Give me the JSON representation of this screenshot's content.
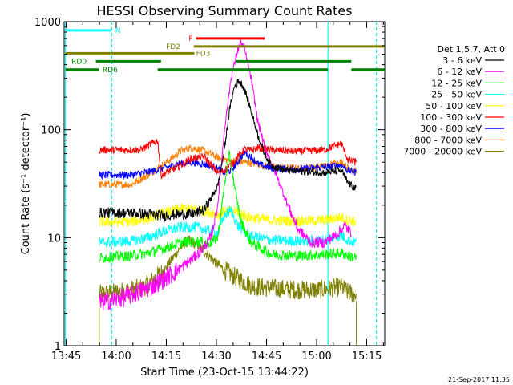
{
  "chart_data": {
    "type": "line",
    "title": "HESSI Observing Summary Count Rates",
    "xlabel": "Start Time (23-Oct-15 13:44:22)",
    "ylabel": "Count Rate (s⁻¹ detector⁻¹)",
    "x_unit": "minutes after 13:44:22",
    "xlim": [
      0,
      96
    ],
    "ylim": [
      1,
      1000
    ],
    "yscale": "log",
    "x_ticks": [
      {
        "v": 0.6,
        "label": "13:45"
      },
      {
        "v": 15.6,
        "label": "14:00"
      },
      {
        "v": 30.6,
        "label": "14:15"
      },
      {
        "v": 45.6,
        "label": "14:30"
      },
      {
        "v": 60.6,
        "label": "14:45"
      },
      {
        "v": 75.6,
        "label": "15:00"
      },
      {
        "v": 90.6,
        "label": "15:15"
      }
    ],
    "y_ticks": [
      {
        "v": 1,
        "label": "1"
      },
      {
        "v": 10,
        "label": "10"
      },
      {
        "v": 100,
        "label": "100"
      },
      {
        "v": 1000,
        "label": "1000"
      }
    ],
    "legend_header": "Det 1,5,7, Att 0",
    "legend_position": "right",
    "timestamp": "21-Sep-2017 11:35",
    "series": [
      {
        "name": "3 - 6 keV",
        "color": "#000000",
        "data": [
          [
            10.5,
            17
          ],
          [
            20,
            17
          ],
          [
            30,
            16
          ],
          [
            34,
            16.5
          ],
          [
            38,
            16.5
          ],
          [
            42,
            18
          ],
          [
            46,
            30
          ],
          [
            48,
            65
          ],
          [
            49.5,
            150
          ],
          [
            51,
            250
          ],
          [
            52.5,
            285
          ],
          [
            54,
            240
          ],
          [
            56,
            150
          ],
          [
            58,
            90
          ],
          [
            60,
            60
          ],
          [
            62,
            47
          ],
          [
            66,
            42
          ],
          [
            72,
            41
          ],
          [
            78,
            40
          ],
          [
            83,
            42
          ],
          [
            85,
            32
          ],
          [
            87.5,
            28
          ]
        ]
      },
      {
        "name": "6 - 12 keV",
        "color": "#ff00ff",
        "data": [
          [
            10.5,
            2.5
          ],
          [
            18,
            2.8
          ],
          [
            26,
            3.5
          ],
          [
            34,
            5
          ],
          [
            40,
            7
          ],
          [
            44,
            10
          ],
          [
            46,
            20
          ],
          [
            48,
            100
          ],
          [
            50,
            300
          ],
          [
            52,
            550
          ],
          [
            53,
            650
          ],
          [
            54,
            560
          ],
          [
            56,
            300
          ],
          [
            58,
            120
          ],
          [
            60,
            70
          ],
          [
            62,
            50
          ],
          [
            64,
            35
          ],
          [
            67,
            20
          ],
          [
            70,
            12
          ],
          [
            74,
            9
          ],
          [
            78,
            9
          ],
          [
            82,
            11
          ],
          [
            84,
            13
          ],
          [
            86,
            11
          ]
        ]
      },
      {
        "name": "12 - 25 keV",
        "color": "#00ff00",
        "data": [
          [
            10.5,
            6.5
          ],
          [
            20,
            6.8
          ],
          [
            25,
            7.2
          ],
          [
            30,
            8
          ],
          [
            35,
            9
          ],
          [
            40,
            9.2
          ],
          [
            44,
            9
          ],
          [
            46,
            10
          ],
          [
            48,
            30
          ],
          [
            49.5,
            60
          ],
          [
            51,
            30
          ],
          [
            53,
            14
          ],
          [
            56,
            9
          ],
          [
            62,
            7
          ],
          [
            70,
            6.8
          ],
          [
            78,
            7
          ],
          [
            83,
            7.2
          ],
          [
            85,
            6.8
          ],
          [
            87.5,
            6.5
          ]
        ]
      },
      {
        "name": "25 - 50 keV",
        "color": "#00ffff",
        "data": [
          [
            10.5,
            9
          ],
          [
            20,
            9.3
          ],
          [
            25,
            10
          ],
          [
            30,
            11.5
          ],
          [
            35,
            12.5
          ],
          [
            40,
            12.5
          ],
          [
            44,
            11.5
          ],
          [
            46,
            11
          ],
          [
            48,
            16
          ],
          [
            50,
            18
          ],
          [
            52,
            13
          ],
          [
            55,
            10.5
          ],
          [
            62,
            9.5
          ],
          [
            70,
            9.3
          ],
          [
            78,
            9.5
          ],
          [
            83,
            10.5
          ],
          [
            85,
            9.5
          ],
          [
            87.5,
            9
          ]
        ]
      },
      {
        "name": "50 - 100 keV",
        "color": "#ffff00",
        "data": [
          [
            10.5,
            14
          ],
          [
            20,
            14
          ],
          [
            25,
            15
          ],
          [
            30,
            17
          ],
          [
            35,
            18.5
          ],
          [
            40,
            18.5
          ],
          [
            44,
            17
          ],
          [
            46,
            16.5
          ],
          [
            48,
            17.5
          ],
          [
            52,
            17.5
          ],
          [
            55,
            15.5
          ],
          [
            62,
            14.5
          ],
          [
            70,
            14.3
          ],
          [
            78,
            14.5
          ],
          [
            83,
            15.5
          ],
          [
            85,
            14.5
          ],
          [
            87.5,
            14
          ]
        ]
      },
      {
        "name": "100 - 300 keV",
        "color": "#ff0000",
        "data": [
          [
            10.5,
            65
          ],
          [
            23,
            65
          ],
          [
            28,
            80
          ],
          [
            29,
            38
          ],
          [
            34,
            45
          ],
          [
            38,
            54
          ],
          [
            42,
            56
          ],
          [
            44,
            47
          ],
          [
            46,
            40
          ],
          [
            48,
            42
          ],
          [
            50,
            47
          ],
          [
            52,
            56
          ],
          [
            54,
            66
          ],
          [
            56,
            64
          ],
          [
            58,
            68
          ],
          [
            62,
            65
          ],
          [
            70,
            63
          ],
          [
            78,
            65
          ],
          [
            83,
            75
          ],
          [
            85,
            52
          ],
          [
            87.5,
            50
          ]
        ]
      },
      {
        "name": "300 - 800 keV",
        "color": "#0000ff",
        "data": [
          [
            10.5,
            38
          ],
          [
            20,
            38
          ],
          [
            26,
            41
          ],
          [
            30,
            44
          ],
          [
            34,
            48
          ],
          [
            38,
            50
          ],
          [
            42,
            48
          ],
          [
            45,
            45
          ],
          [
            48,
            40
          ],
          [
            50,
            42
          ],
          [
            52,
            50
          ],
          [
            54,
            62
          ],
          [
            56,
            56
          ],
          [
            58,
            48
          ],
          [
            62,
            44
          ],
          [
            70,
            43
          ],
          [
            78,
            45
          ],
          [
            83,
            47
          ],
          [
            85,
            42
          ],
          [
            87.5,
            40
          ]
        ]
      },
      {
        "name": "800 - 7000 keV",
        "color": "#ff8000",
        "data": [
          [
            10.5,
            31
          ],
          [
            20,
            31
          ],
          [
            25,
            38
          ],
          [
            30,
            48
          ],
          [
            35,
            64
          ],
          [
            38,
            68
          ],
          [
            42,
            64
          ],
          [
            46,
            55
          ],
          [
            50,
            51
          ],
          [
            54,
            50
          ],
          [
            58,
            48
          ],
          [
            62,
            45
          ],
          [
            70,
            44
          ],
          [
            78,
            46
          ],
          [
            83,
            50
          ],
          [
            85,
            44
          ],
          [
            87.5,
            42
          ]
        ]
      },
      {
        "name": "7000 - 20000 keV",
        "color": "#808000",
        "data": [
          [
            10.5,
            3
          ],
          [
            18,
            3.2
          ],
          [
            24,
            3.5
          ],
          [
            30,
            5
          ],
          [
            34,
            7.5
          ],
          [
            37,
            9.5
          ],
          [
            40,
            8.5
          ],
          [
            44,
            6.5
          ],
          [
            48,
            5
          ],
          [
            52,
            4.2
          ],
          [
            56,
            3.6
          ],
          [
            62,
            3.4
          ],
          [
            70,
            3.3
          ],
          [
            76,
            3.3
          ],
          [
            80,
            3.4
          ],
          [
            83,
            3.5
          ],
          [
            85,
            3.1
          ],
          [
            87.5,
            3
          ]
        ]
      }
    ],
    "bars": [
      {
        "label": "N",
        "color": "#00ffff",
        "y": 830,
        "segments": [
          [
            0.4,
            14
          ]
        ],
        "label_at": 15.3
      },
      {
        "label": "F",
        "color": "#ff0000",
        "y": 700,
        "segments": [
          [
            39.5,
            60
          ]
        ],
        "label_at": 37.3
      },
      {
        "label": "FD2",
        "color": "#808000",
        "y": 590,
        "segments": [
          [
            38.8,
            96
          ]
        ],
        "label_at": 30.5
      },
      {
        "label": "FD3",
        "color": "#808000",
        "y": 510,
        "segments": [
          [
            0.4,
            39
          ]
        ],
        "label_at": 39.5
      },
      {
        "label": "RD0",
        "color": "#008000",
        "y": 430,
        "segments": [
          [
            9.5,
            29
          ],
          [
            51.5,
            86
          ]
        ],
        "label_at": 2.2
      },
      {
        "label": "RD6",
        "color": "#008000",
        "y": 360,
        "segments": [
          [
            0.4,
            10.5
          ],
          [
            28,
            79
          ],
          [
            86,
            96
          ]
        ],
        "label_at": 11.5
      }
    ],
    "night_boundaries": [
      0.4,
      14.3,
      79,
      93.5
    ],
    "data_gaps": [
      10.5,
      87.5
    ]
  }
}
